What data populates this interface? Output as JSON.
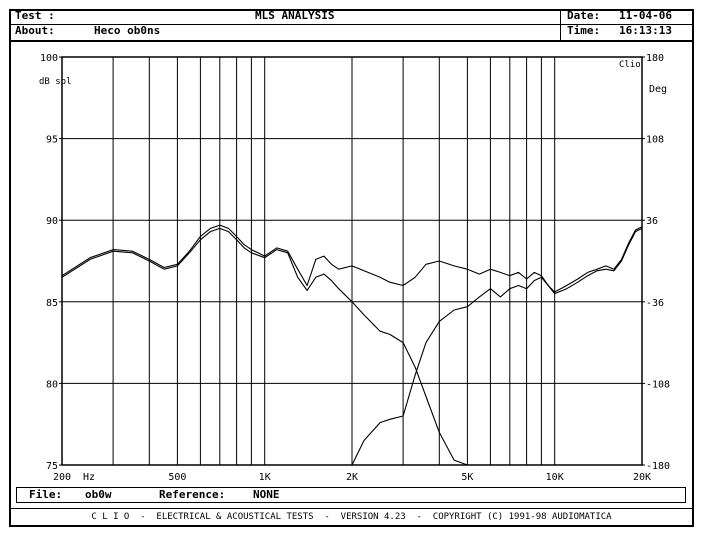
{
  "header": {
    "test_label": "Test :",
    "title": "MLS ANALYSIS",
    "date_label": "Date:",
    "date_value": "11-04-06",
    "about_label": "About:",
    "about_value": "Heco ob0ns",
    "time_label": "Time:",
    "time_value": "16:13:13"
  },
  "footer": {
    "file_label": "File:",
    "file_value": "ob0w",
    "reference_label": "Reference:",
    "reference_value": "NONE",
    "clio_line": "C L I O  -  ELECTRICAL & ACOUSTICAL TESTS  -  VERSION 4.23  -  COPYRIGHT (C) 1991-98 AUDIOMATICA"
  },
  "chart_data": {
    "type": "line",
    "xscale": "log",
    "xlim": [
      200,
      20000
    ],
    "ylim": [
      75,
      100
    ],
    "y2lim": [
      -180,
      180
    ],
    "grid": true,
    "xlabel": "Hz",
    "ylabel_left": "dB spl",
    "ylabel_right": "Deg",
    "corner_label": "Clio",
    "x_ticks": [
      {
        "value": 200,
        "label": "200"
      },
      {
        "value": 500,
        "label": "500"
      },
      {
        "value": 1000,
        "label": "1K"
      },
      {
        "value": 2000,
        "label": "2K"
      },
      {
        "value": 5000,
        "label": "5K"
      },
      {
        "value": 10000,
        "label": "10K"
      },
      {
        "value": 20000,
        "label": "20K"
      }
    ],
    "y_ticks": [
      {
        "value": 100,
        "label": "100"
      },
      {
        "value": 95,
        "label": "95"
      },
      {
        "value": 90,
        "label": "90"
      },
      {
        "value": 85,
        "label": "85"
      },
      {
        "value": 80,
        "label": "80"
      },
      {
        "value": 75,
        "label": "75"
      }
    ],
    "y2_ticks": [
      {
        "value": 180,
        "label": "180"
      },
      {
        "value": 108,
        "label": "108"
      },
      {
        "value": 36,
        "label": "36"
      },
      {
        "value": -36,
        "label": "-36"
      },
      {
        "value": -108,
        "label": "-108"
      },
      {
        "value": -180,
        "label": "-180"
      }
    ],
    "series": [
      {
        "x": [
          200,
          250,
          300,
          350,
          400,
          450,
          500,
          550,
          600,
          650,
          700,
          750,
          800,
          850,
          900,
          1000,
          1100,
          1200,
          1300,
          1400,
          1500,
          1600,
          1700,
          1800,
          2000,
          2200,
          2500,
          2700,
          3000,
          3300,
          3600,
          4000,
          4500,
          5000,
          5500,
          6000,
          6500,
          7000,
          7500,
          8000,
          8500,
          9000,
          9500,
          10000,
          11000,
          12000,
          13000,
          14000,
          15000,
          16000,
          17000,
          18000,
          19000,
          20000
        ],
        "y": [
          86.5,
          87.6,
          88.1,
          88.0,
          87.5,
          87.0,
          87.2,
          88.0,
          88.8,
          89.3,
          89.5,
          89.3,
          88.8,
          88.3,
          88.0,
          87.7,
          88.2,
          88.0,
          86.5,
          85.7,
          86.5,
          86.7,
          86.3,
          85.8,
          85.0,
          84.2,
          83.2,
          83.0,
          82.5,
          81.0,
          79.2,
          77.0,
          75.3,
          75.0,
          null,
          null,
          null,
          null,
          null,
          null,
          null,
          null,
          null,
          null,
          null,
          null,
          null,
          null,
          null,
          null,
          null,
          null,
          null,
          null
        ]
      },
      {
        "x": [
          2000,
          2200,
          2500,
          2700,
          3000,
          3300,
          3600,
          4000,
          4500,
          5000,
          5500,
          6000,
          6500,
          7000,
          7500,
          8000,
          8500,
          9000,
          9500,
          10000,
          11000,
          12000,
          13000,
          14000,
          15000,
          16000,
          17000,
          18000,
          19000,
          20000
        ],
        "y": [
          75.0,
          76.5,
          77.6,
          77.8,
          78.0,
          80.5,
          82.5,
          83.8,
          84.5,
          84.7,
          85.3,
          85.8,
          85.3,
          85.8,
          86.0,
          85.8,
          86.3,
          86.5,
          86.0,
          85.5,
          85.8,
          86.2,
          86.6,
          86.9,
          87.0,
          86.9,
          87.5,
          88.5,
          89.3,
          89.5
        ]
      },
      {
        "x": [
          200,
          250,
          300,
          350,
          400,
          450,
          500,
          550,
          600,
          650,
          700,
          750,
          800,
          850,
          900,
          1000,
          1100,
          1200,
          1300,
          1400,
          1500,
          1600,
          1700,
          1800,
          2000,
          2200,
          2500,
          2700,
          3000,
          3300,
          3600,
          4000,
          4500,
          5000,
          5500,
          6000,
          6500,
          7000,
          7500,
          8000,
          8500,
          9000,
          9500,
          10000,
          11000,
          12000,
          13000,
          14000,
          15000,
          16000,
          17000,
          18000,
          19000,
          20000
        ],
        "y": [
          86.6,
          87.7,
          88.2,
          88.1,
          87.6,
          87.1,
          87.3,
          88.1,
          89.0,
          89.5,
          89.7,
          89.5,
          89.0,
          88.5,
          88.2,
          87.8,
          88.3,
          88.1,
          87.0,
          86.0,
          87.6,
          87.8,
          87.3,
          87.0,
          87.2,
          86.9,
          86.5,
          86.2,
          86.0,
          86.5,
          87.3,
          87.5,
          87.2,
          87.0,
          86.7,
          87.0,
          86.8,
          86.6,
          86.8,
          86.4,
          86.8,
          86.6,
          86.0,
          85.6,
          86.0,
          86.4,
          86.8,
          87.0,
          87.2,
          87.0,
          87.6,
          88.6,
          89.4,
          89.6
        ]
      }
    ]
  }
}
